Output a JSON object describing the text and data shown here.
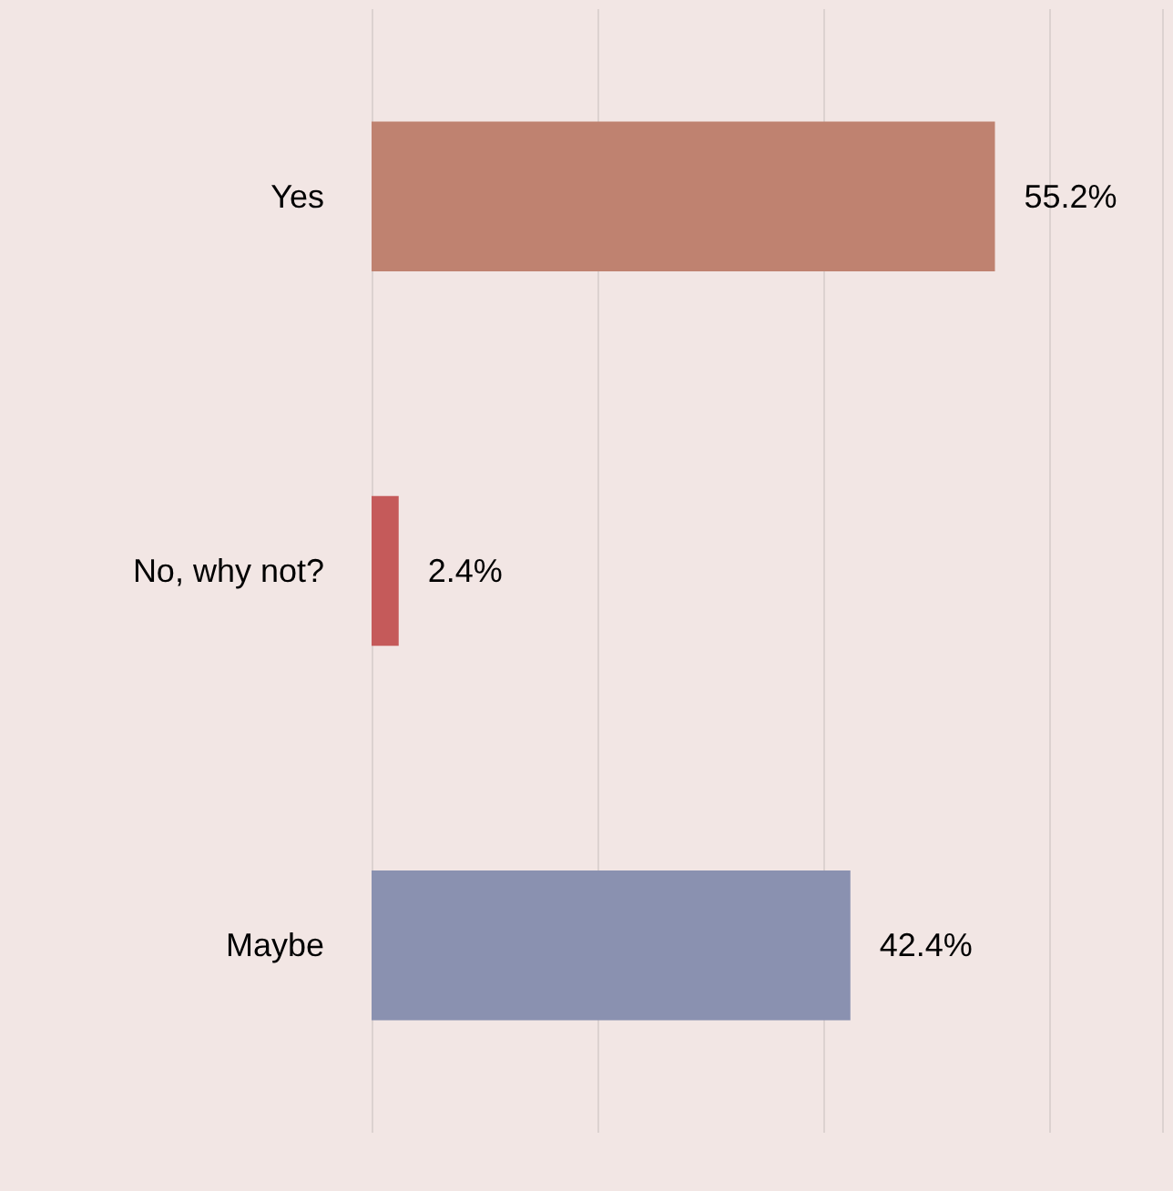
{
  "chart_data": {
    "type": "bar",
    "orientation": "horizontal",
    "categories": [
      "Yes",
      "No, why not?",
      "Maybe"
    ],
    "values": [
      55.2,
      2.4,
      42.4
    ],
    "colors": [
      "#bf8270",
      "#c55a5a",
      "#8a91b0"
    ],
    "value_labels": [
      "55.2%",
      "2.4%",
      "42.4%"
    ],
    "xlim": [
      0,
      70
    ],
    "xticks": [
      {
        "value": 0,
        "label": null
      },
      {
        "value": 20,
        "label": null
      },
      {
        "value": 40,
        "label": null
      },
      {
        "value": 60,
        "label": null
      }
    ],
    "tick_labels": "y",
    "grid": "x"
  }
}
